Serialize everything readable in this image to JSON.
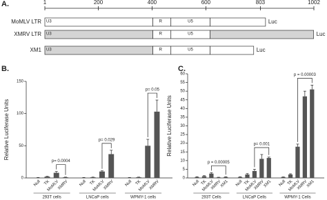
{
  "panel_a": {
    "label": "A.",
    "ruler": {
      "range": [
        1,
        1002
      ],
      "ticks": [
        1,
        200,
        400,
        600,
        803,
        1002
      ]
    },
    "constructs": [
      {
        "name": "MoMLV LTR",
        "end_label": "Luc",
        "segments": [
          {
            "label": "U3",
            "start": 1,
            "end": 403,
            "color": "#ffffff"
          },
          {
            "label": "R",
            "start": 403,
            "end": 470,
            "color": "#ffffff"
          },
          {
            "label": "U5",
            "start": 470,
            "end": 616,
            "color": "#ffffff"
          },
          {
            "start": 616,
            "end": 822,
            "color": "#ffffff"
          }
        ]
      },
      {
        "name": "XMRV LTR",
        "end_label": "Luc",
        "segments": [
          {
            "label": "U3",
            "start": 1,
            "end": 403,
            "color": "#d4d4d4"
          },
          {
            "label": "R",
            "start": 403,
            "end": 470,
            "color": "#ffffff"
          },
          {
            "label": "U5",
            "start": 470,
            "end": 616,
            "color": "#ffffff"
          },
          {
            "start": 616,
            "end": 1001,
            "color": "#d4d4d4"
          }
        ]
      },
      {
        "name": "XM1",
        "end_label": "Luc",
        "segments": [
          {
            "label": "U3",
            "start": 1,
            "end": 403,
            "color": "#d4d4d4"
          },
          {
            "label": "R",
            "start": 403,
            "end": 470,
            "color": "#ffffff"
          },
          {
            "label": "U5",
            "start": 470,
            "end": 616,
            "color": "#ffffff"
          },
          {
            "start": 616,
            "end": 778,
            "color": "#ffffff"
          }
        ]
      }
    ]
  },
  "chart_data": [
    {
      "type": "bar",
      "panel_label": "B.",
      "ylabel": "Relative Luciferase Units",
      "ylim": [
        0,
        150
      ],
      "yticks": [
        0,
        50,
        100,
        150
      ],
      "color": "#555555",
      "groups": [
        {
          "name": "293T cells",
          "categories": [
            "Null",
            "TK",
            "MoMLV",
            "XMRV"
          ],
          "values": [
            0.5,
            2,
            8,
            1
          ],
          "errors": [
            0.2,
            0.5,
            2,
            0.3
          ],
          "annotation": "p= 0.0004"
        },
        {
          "name": "LNCaP cells",
          "categories": [
            "Null",
            "TK",
            "MoMLV",
            "XMRV"
          ],
          "values": [
            0.5,
            1,
            10,
            37
          ],
          "errors": [
            0.2,
            0.3,
            1,
            6
          ],
          "annotation": "p= 0.029"
        },
        {
          "name": "WPMY-1 cells",
          "categories": [
            "Null",
            "TK",
            "MoMLV",
            "XMRV"
          ],
          "values": [
            0.5,
            1,
            50,
            103
          ],
          "errors": [
            0.2,
            0.3,
            10,
            18
          ],
          "annotation": "p= 0.05"
        }
      ]
    },
    {
      "type": "bar",
      "panel_label": "C.",
      "ylabel": "Relative Luciferase Units",
      "ylim": [
        0,
        60
      ],
      "yticks": [
        0,
        5,
        10,
        15,
        20,
        25,
        30,
        35,
        40,
        45,
        50,
        55,
        60
      ],
      "color": "#555555",
      "groups": [
        {
          "name": "293T Cells",
          "categories": [
            "Null",
            "TK",
            "MoMLV",
            "XMRV",
            "XM1"
          ],
          "values": [
            0.5,
            1,
            2.5,
            0.3,
            0.5
          ],
          "errors": [
            0.2,
            0.3,
            0.5,
            0.1,
            0.2
          ],
          "annotation": "p = 0.00005"
        },
        {
          "name": "LNCaP Cells",
          "categories": [
            "Null",
            "TK",
            "MoMLV",
            "XMRV",
            "XM1"
          ],
          "values": [
            0.5,
            2,
            4,
            11,
            11.5
          ],
          "errors": [
            0.2,
            0.5,
            1,
            2.5,
            0.5
          ],
          "annotation": "p= 0.001"
        },
        {
          "name": "WPMY-1 Cells",
          "categories": [
            "Null",
            "TK",
            "MoMLV",
            "XMRV",
            "XM1"
          ],
          "values": [
            0.5,
            2,
            18,
            47,
            51
          ],
          "errors": [
            0.1,
            0.4,
            1.5,
            3,
            2.5
          ],
          "annotation": "p = 0.00003"
        }
      ]
    }
  ]
}
